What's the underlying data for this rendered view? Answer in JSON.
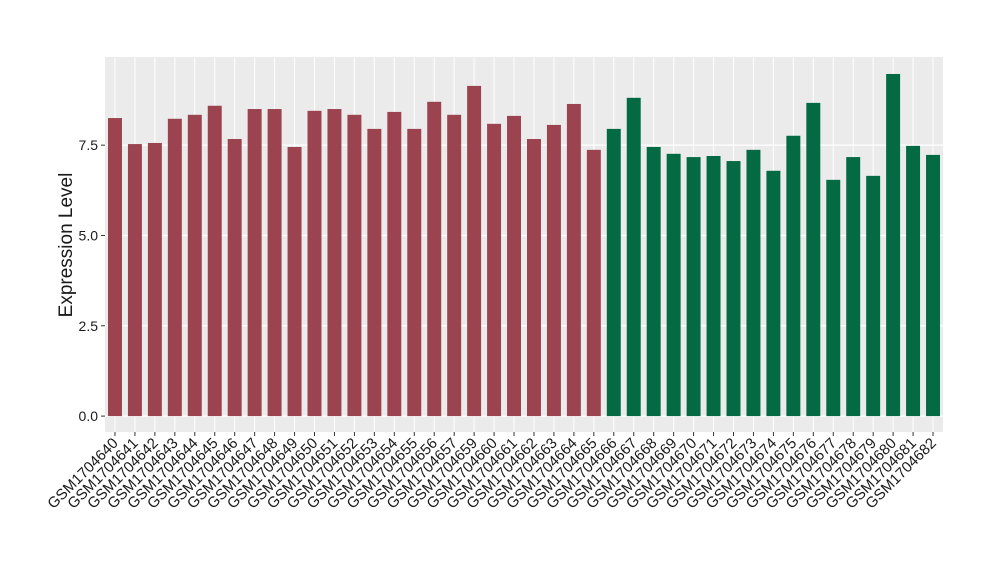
{
  "chart_data": {
    "type": "bar",
    "y_label": "Expression Level",
    "categories": [
      "GSM1704640",
      "GSM1704641",
      "GSM1704642",
      "GSM1704643",
      "GSM1704644",
      "GSM1704645",
      "GSM1704646",
      "GSM1704647",
      "GSM1704648",
      "GSM1704649",
      "GSM1704650",
      "GSM1704651",
      "GSM1704652",
      "GSM1704653",
      "GSM1704654",
      "GSM1704655",
      "GSM1704656",
      "GSM1704657",
      "GSM1704659",
      "GSM1704660",
      "GSM1704661",
      "GSM1704662",
      "GSM1704663",
      "GSM1704664",
      "GSM1704665",
      "GSM1704666",
      "GSM1704667",
      "GSM1704668",
      "GSM1704669",
      "GSM1704670",
      "GSM1704671",
      "GSM1704672",
      "GSM1704673",
      "GSM1704674",
      "GSM1704675",
      "GSM1704676",
      "GSM1704677",
      "GSM1704678",
      "GSM1704679",
      "GSM1704680",
      "GSM1704681",
      "GSM1704682"
    ],
    "values": [
      8.25,
      7.53,
      7.56,
      8.23,
      8.34,
      8.59,
      7.67,
      8.5,
      8.5,
      7.45,
      8.45,
      8.5,
      8.34,
      7.95,
      8.42,
      7.95,
      8.7,
      8.34,
      9.14,
      8.09,
      8.31,
      7.67,
      8.06,
      8.64,
      7.37,
      7.95,
      8.81,
      7.45,
      7.26,
      7.17,
      7.2,
      7.06,
      7.37,
      6.79,
      7.76,
      8.67,
      6.54,
      7.17,
      6.65,
      9.47,
      7.48,
      7.23
    ],
    "colors": [
      "#9b4450",
      "#9b4450",
      "#9b4450",
      "#9b4450",
      "#9b4450",
      "#9b4450",
      "#9b4450",
      "#9b4450",
      "#9b4450",
      "#9b4450",
      "#9b4450",
      "#9b4450",
      "#9b4450",
      "#9b4450",
      "#9b4450",
      "#9b4450",
      "#9b4450",
      "#9b4450",
      "#9b4450",
      "#9b4450",
      "#9b4450",
      "#9b4450",
      "#9b4450",
      "#9b4450",
      "#9b4450",
      "#046a44",
      "#046a44",
      "#046a44",
      "#046a44",
      "#046a44",
      "#046a44",
      "#046a44",
      "#046a44",
      "#046a44",
      "#046a44",
      "#046a44",
      "#046a44",
      "#046a44",
      "#046a44",
      "#046a44",
      "#046a44",
      "#046a44"
    ],
    "ylim": [
      -0.44,
      9.94
    ],
    "yticks": [
      {
        "value": 0,
        "label": "0.0"
      },
      2.5,
      {
        "value": 5,
        "label": "5.0"
      },
      7.5
    ],
    "grid": true
  }
}
